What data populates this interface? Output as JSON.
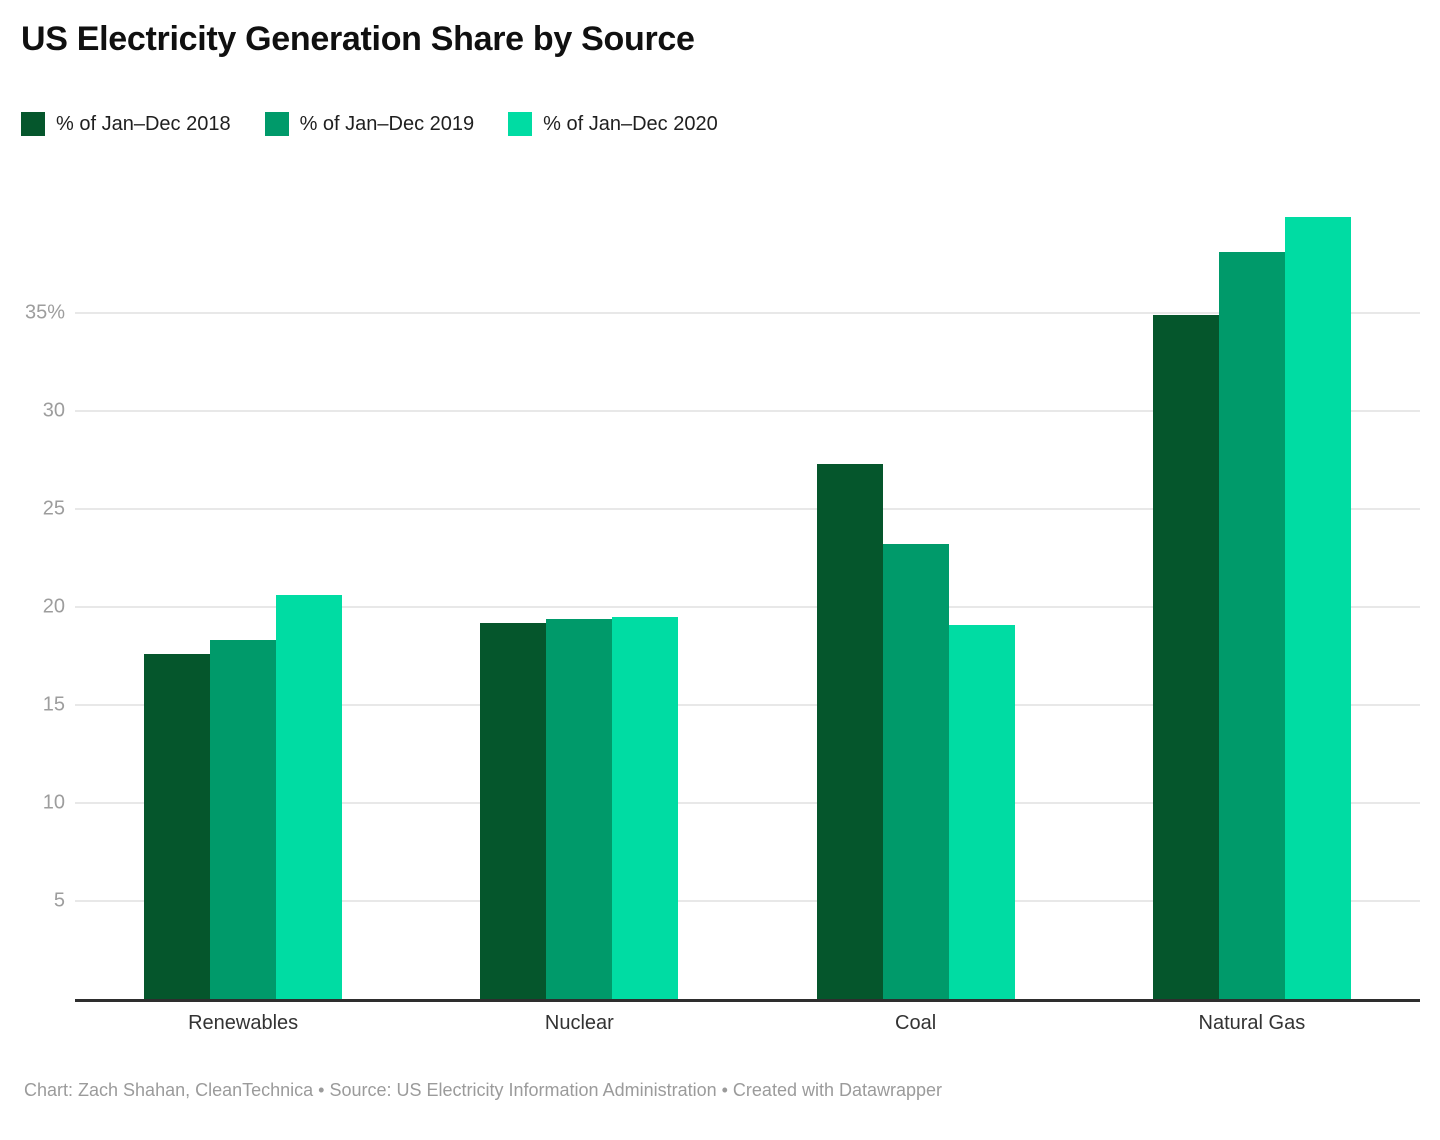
{
  "title": "US Electricity Generation Share by Source",
  "footer": "Chart: Zach Shahan, CleanTechnica • Source: US Electricity Information Administration • Created with Datawrapper",
  "chart_data": {
    "type": "bar",
    "title": "US Electricity Generation Share by Source",
    "categories": [
      "Renewables",
      "Nuclear",
      "Coal",
      "Natural Gas"
    ],
    "series": [
      {
        "name": "% of Jan–Dec 2018",
        "color": "#05562c",
        "values": [
          17.6,
          19.2,
          27.3,
          34.9
        ]
      },
      {
        "name": "% of Jan–Dec 2019",
        "color": "#009a6a",
        "values": [
          18.3,
          19.4,
          23.2,
          38.1
        ]
      },
      {
        "name": "% of Jan–Dec 2020",
        "color": "#00dca3",
        "values": [
          20.6,
          19.5,
          19.1,
          39.9
        ]
      }
    ],
    "ylim": [
      0,
      40
    ],
    "yticks": [
      {
        "value": 5,
        "label": "5"
      },
      {
        "value": 10,
        "label": "10"
      },
      {
        "value": 15,
        "label": "15"
      },
      {
        "value": 20,
        "label": "20"
      },
      {
        "value": 25,
        "label": "25"
      },
      {
        "value": 30,
        "label": "30"
      },
      {
        "value": 35,
        "label": "35%"
      }
    ],
    "grid": "horizontal",
    "legend_position": "top-left",
    "unit": "%"
  },
  "colors": {
    "grid": "#e8e8e8",
    "axis_line": "#2e2e2e",
    "tick_text": "#9d9d9d",
    "category_text": "#333333",
    "footer_text": "#9b9b9b",
    "title_text": "#101010",
    "background": "#ffffff"
  }
}
